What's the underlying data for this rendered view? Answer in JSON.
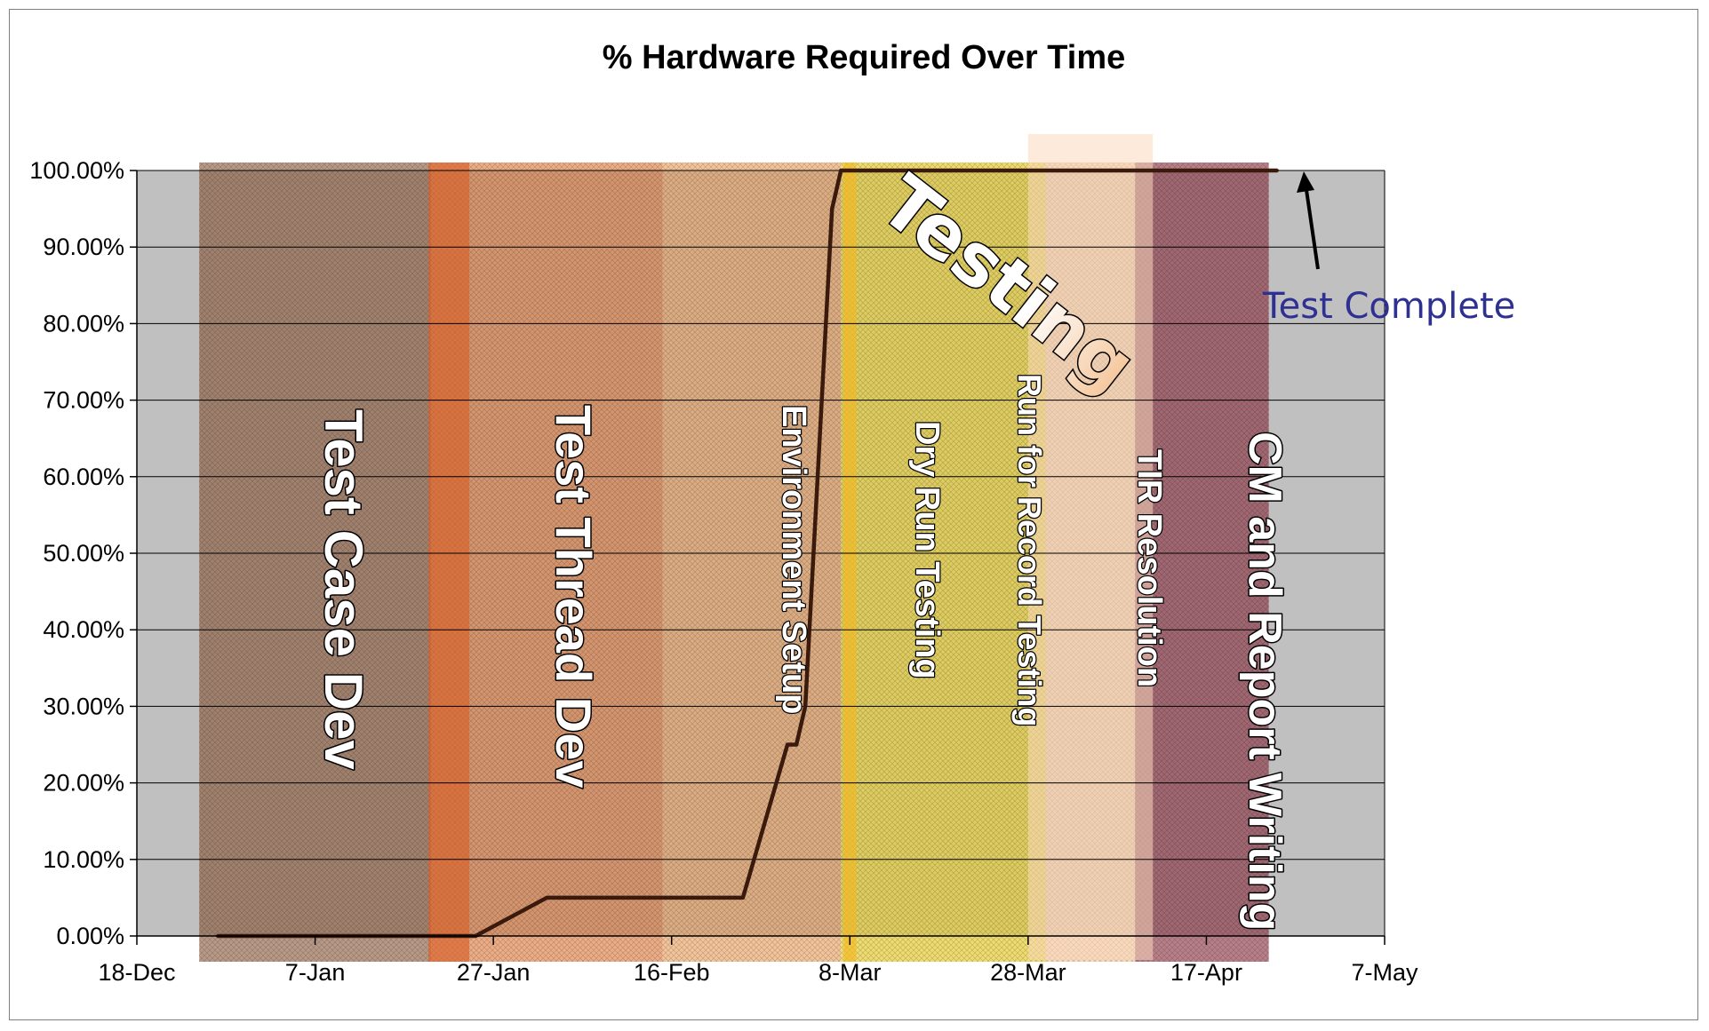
{
  "chart_data": {
    "type": "line",
    "title": "% Hardware Required Over Time",
    "xlabel": "",
    "ylabel": "",
    "ylim": [
      0,
      1
    ],
    "xlim": [
      "2000-12-18",
      "2001-05-07"
    ],
    "y_ticks": [
      "0.00%",
      "10.00%",
      "20.00%",
      "30.00%",
      "40.00%",
      "50.00%",
      "60.00%",
      "70.00%",
      "80.00%",
      "90.00%",
      "100.00%"
    ],
    "x_ticks": [
      "18-Dec",
      "7-Jan",
      "27-Jan",
      "16-Feb",
      "8-Mar",
      "28-Mar",
      "17-Apr",
      "7-May"
    ],
    "grid": "horizontal",
    "legend": "none",
    "series": [
      {
        "color": "#3a1a0c",
        "points": [
          {
            "x": "2000-12-27",
            "y": 0
          },
          {
            "x": "2001-01-25",
            "y": 0
          },
          {
            "x": "2001-02-02",
            "y": 0.05
          },
          {
            "x": "2001-02-24",
            "y": 0.05
          },
          {
            "x": "2001-03-01",
            "y": 0.25
          },
          {
            "x": "2001-03-02",
            "y": 0.25
          },
          {
            "x": "2001-03-03",
            "y": 0.3
          },
          {
            "x": "2001-03-06",
            "y": 0.95
          },
          {
            "x": "2001-03-07",
            "y": 1.0
          },
          {
            "x": "2001-04-25",
            "y": 1.0
          }
        ]
      }
    ],
    "phases": [
      {
        "label": "Test Case Dev",
        "start": "2000-12-25",
        "end": "2001-01-20",
        "color": "#8c5a3c",
        "opacity": 0.62,
        "size": 60,
        "lines": [
          "Test Case Dev"
        ]
      },
      {
        "label": "Test Thread Dev",
        "start": "2001-01-20",
        "end": "2001-02-15",
        "color": "#e07a3c",
        "opacity": 0.62,
        "size": 56,
        "lines": [
          "Test Thread Dev"
        ]
      },
      {
        "label": "Environment Setup",
        "start": "2001-02-15",
        "end": "2001-03-07",
        "color": "#eba05c",
        "opacity": 0.62,
        "size": 38,
        "lines": [
          "Environment Setup"
        ]
      },
      {
        "label": "Dry Run Testing",
        "start": "2001-03-07",
        "end": "2001-03-30",
        "color": "#e8d040",
        "opacity": 0.75,
        "size": 38,
        "lines": [
          "Dry Run Testing"
        ]
      },
      {
        "label": "Run for Record Testing",
        "start": "2001-03-07",
        "end": "2001-03-30",
        "color": "#e8d040",
        "opacity": 0.0,
        "size": 36,
        "lines": [
          "Run for Record Testing"
        ]
      },
      {
        "label": "TIR Resolution",
        "start": "2001-03-30",
        "end": "2001-04-09",
        "color": "#f2c89a",
        "opacity": 0.7,
        "size": 38,
        "lines": [
          "TIR Resolution"
        ]
      },
      {
        "label": "CM and Report Writing",
        "start": "2001-04-09",
        "end": "2001-04-24",
        "color": "#8c3040",
        "opacity": 0.62,
        "size": 52,
        "lines": [
          "CM and Report Writing"
        ]
      }
    ],
    "annotations": [
      {
        "text": "Testing"
      },
      {
        "text": "Test Complete",
        "color": "#2e3192"
      }
    ]
  }
}
